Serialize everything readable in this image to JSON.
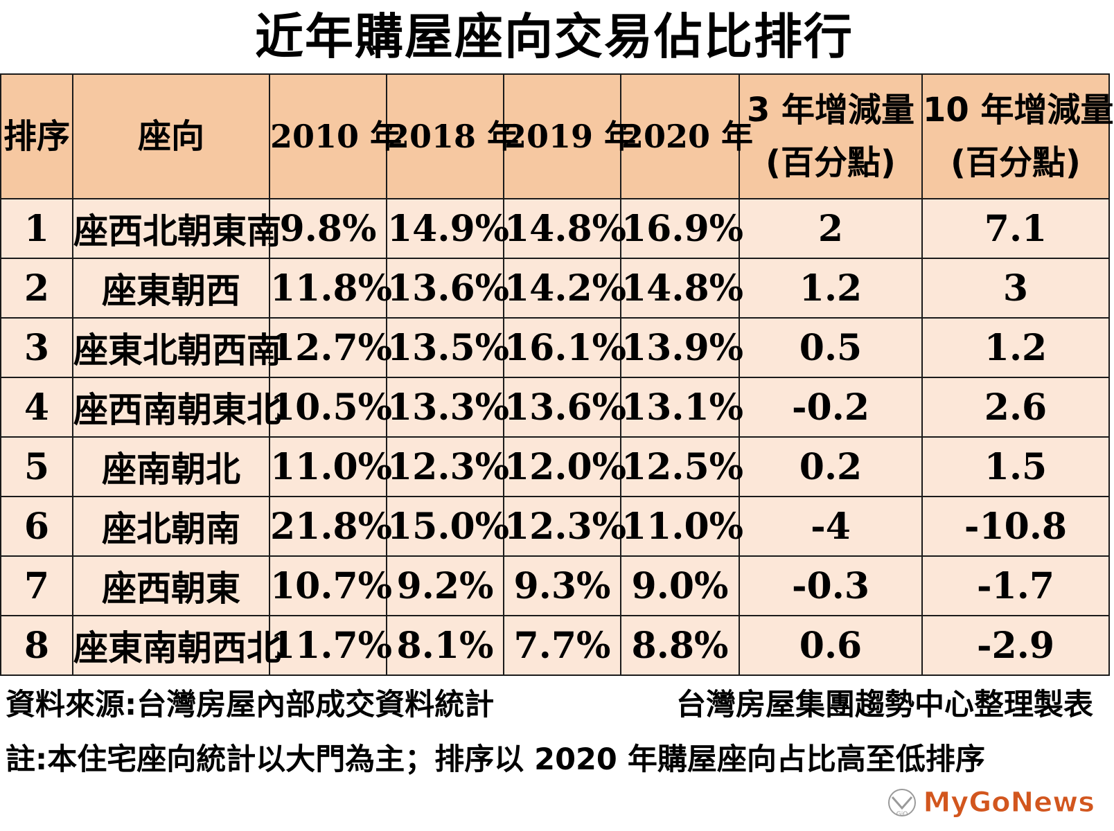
{
  "chart_data": {
    "type": "table",
    "title": "近年購屋座向交易佔比排行",
    "columns": [
      {
        "line1": "排序",
        "line2": ""
      },
      {
        "line1": "座向",
        "line2": ""
      },
      {
        "line1": "2010 年",
        "line2": ""
      },
      {
        "line1": "2018 年",
        "line2": ""
      },
      {
        "line1": "2019 年",
        "line2": ""
      },
      {
        "line1": "2020 年",
        "line2": ""
      },
      {
        "line1": "3 年增減量",
        "line2": "(百分點)"
      },
      {
        "line1": "10 年增減量",
        "line2": "(百分點)"
      }
    ],
    "rows": [
      {
        "rank": "1",
        "direction": "座西北朝東南",
        "y2010": "9.8%",
        "y2018": "14.9%",
        "y2019": "14.8%",
        "y2020": "16.9%",
        "chg3": "2",
        "chg10": "7.1"
      },
      {
        "rank": "2",
        "direction": "座東朝西",
        "y2010": "11.8%",
        "y2018": "13.6%",
        "y2019": "14.2%",
        "y2020": "14.8%",
        "chg3": "1.2",
        "chg10": "3"
      },
      {
        "rank": "3",
        "direction": "座東北朝西南",
        "y2010": "12.7%",
        "y2018": "13.5%",
        "y2019": "16.1%",
        "y2020": "13.9%",
        "chg3": "0.5",
        "chg10": "1.2"
      },
      {
        "rank": "4",
        "direction": "座西南朝東北",
        "y2010": "10.5%",
        "y2018": "13.3%",
        "y2019": "13.6%",
        "y2020": "13.1%",
        "chg3": "-0.2",
        "chg10": "2.6"
      },
      {
        "rank": "5",
        "direction": "座南朝北",
        "y2010": "11.0%",
        "y2018": "12.3%",
        "y2019": "12.0%",
        "y2020": "12.5%",
        "chg3": "0.2",
        "chg10": "1.5"
      },
      {
        "rank": "6",
        "direction": "座北朝南",
        "y2010": "21.8%",
        "y2018": "15.0%",
        "y2019": "12.3%",
        "y2020": "11.0%",
        "chg3": "-4",
        "chg10": "-10.8"
      },
      {
        "rank": "7",
        "direction": "座西朝東",
        "y2010": "10.7%",
        "y2018": "9.2%",
        "y2019": "9.3%",
        "y2020": "9.0%",
        "chg3": "-0.3",
        "chg10": "-1.7"
      },
      {
        "rank": "8",
        "direction": "座東南朝西北",
        "y2010": "11.7%",
        "y2018": "8.1%",
        "y2019": "7.7%",
        "y2020": "8.8%",
        "chg3": "0.6",
        "chg10": "-2.9"
      }
    ]
  },
  "footer": {
    "source": "資料來源:台灣房屋內部成交資料統計",
    "producer": "台灣房屋集團趨勢中心整理製表",
    "note": "註:本住宅座向統計以大門為主；排序以 2020 年購屋座向占比高至低排序"
  },
  "watermark": {
    "text": "MyGoNews",
    "mark_text": "GiO",
    "color": "#d2561e"
  },
  "colors": {
    "header_bg": "#f6c8a1",
    "cell_bg": "#fce7d8",
    "border": "#1a1a1a"
  }
}
